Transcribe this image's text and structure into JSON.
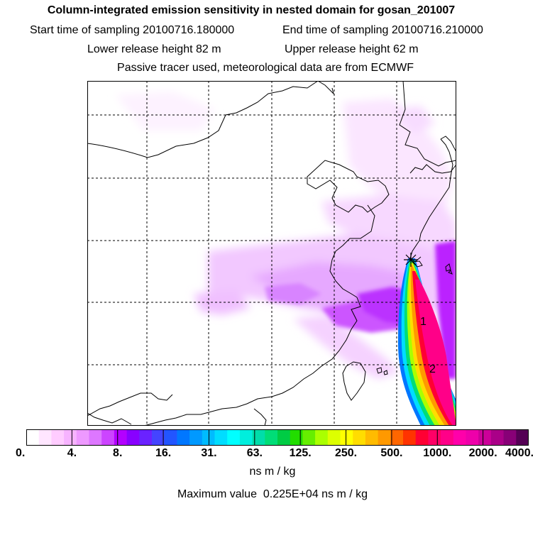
{
  "header": {
    "title": "Column-integrated emission sensitivity in nested domain for gosan_201007",
    "start_time": "Start time of sampling 20100716.180000",
    "end_time": "End time of sampling 20100716.210000",
    "lower_height": "Lower release height   82 m",
    "upper_height": "Upper release height   62 m",
    "tracer_note": "Passive tracer used, meteorological data are from ECMWF"
  },
  "map": {
    "markers": [
      {
        "label": "1",
        "kind": "position-label"
      },
      {
        "label": "2",
        "kind": "position-label"
      }
    ],
    "release_site_icon": "star-icon"
  },
  "colorbar": {
    "colors": [
      "#ffffff",
      "#ffe6ff",
      "#ffccff",
      "#f7b3ff",
      "#ee99ff",
      "#dd77ff",
      "#cc44ff",
      "#b300ff",
      "#8800ff",
      "#6a22ff",
      "#4444ff",
      "#2255ff",
      "#0077ff",
      "#0099ff",
      "#00bbff",
      "#00ddff",
      "#00ffff",
      "#00eedd",
      "#00ddaa",
      "#00dd77",
      "#00cc44",
      "#22dd00",
      "#66ee00",
      "#aaff00",
      "#ddff00",
      "#ffff00",
      "#ffdd00",
      "#ffbb00",
      "#ff9900",
      "#ff6600",
      "#ff3300",
      "#ff0033",
      "#ff0066",
      "#ff0088",
      "#ff00aa",
      "#ee00aa",
      "#cc0099",
      "#aa0088",
      "#880077",
      "#550055"
    ],
    "tick_labels": [
      "0.",
      "4.",
      "8.",
      "16.",
      "31.",
      "63.",
      "125.",
      "250.",
      "500.",
      "1000.",
      "2000.",
      "4000."
    ],
    "unit": "ns m / kg"
  },
  "footer": {
    "max_value": "Maximum value  0.225E+04 ns m / kg"
  }
}
